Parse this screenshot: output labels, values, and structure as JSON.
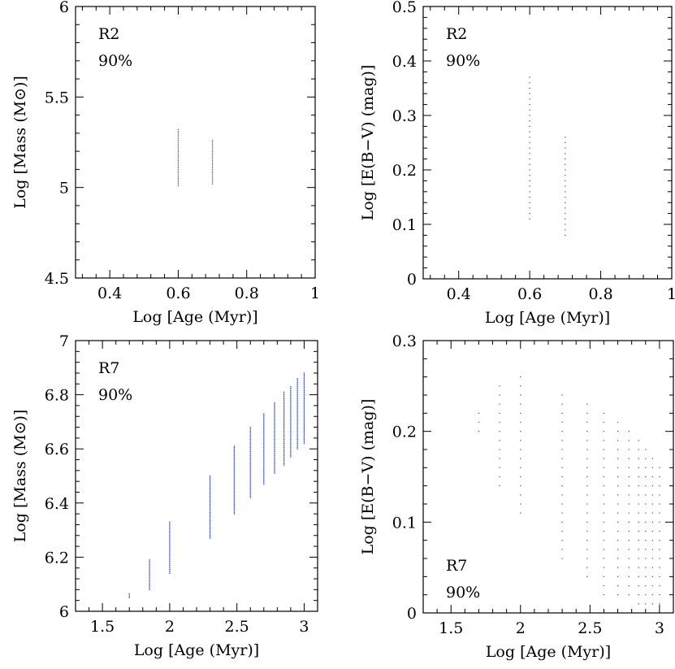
{
  "chart_data": [
    {
      "id": "r2-mass",
      "type": "scatter",
      "title": "",
      "xlabel": "Log [Age (Myr)]",
      "ylabel": "Log [Mass (M⊙)]",
      "xlim": [
        0.3,
        1.0
      ],
      "ylim": [
        4.5,
        6.0
      ],
      "xticks": [
        0.4,
        0.6,
        0.8,
        1
      ],
      "xtick_labels": [
        "0.4",
        "0.6",
        "0.8",
        "1"
      ],
      "yticks": [
        4.5,
        5,
        5.5,
        6
      ],
      "ytick_labels": [
        "4.5",
        "5",
        "5.5",
        "6"
      ],
      "annotation": [
        "R2",
        "90%"
      ],
      "annotation_position": "top-left",
      "point_color": "#1f3bd6",
      "columns": [
        {
          "x": 0.6,
          "ymin": 5.01,
          "ymax": 5.32,
          "step": 0.01
        },
        {
          "x": 0.7,
          "ymin": 5.02,
          "ymax": 5.26,
          "step": 0.01
        }
      ]
    },
    {
      "id": "r2-ebv",
      "type": "scatter",
      "title": "",
      "xlabel": "Log [Age (Myr)]",
      "ylabel": "Log [E(B−V) (mag)]",
      "xlim": [
        0.3,
        1.0
      ],
      "ylim": [
        0,
        0.5
      ],
      "xticks": [
        0.4,
        0.6,
        0.8,
        1
      ],
      "xtick_labels": [
        "0.4",
        "0.6",
        "0.8",
        "1"
      ],
      "yticks": [
        0,
        0.1,
        0.2,
        0.3,
        0.4,
        0.5
      ],
      "ytick_labels": [
        "0",
        "0.1",
        "0.2",
        "0.3",
        "0.4",
        "0.5"
      ],
      "annotation": [
        "R2",
        "90%"
      ],
      "annotation_position": "top-left",
      "point_color": "#1f3bd6",
      "columns": [
        {
          "x": 0.6,
          "ymin": 0.11,
          "ymax": 0.37,
          "step": 0.01
        },
        {
          "x": 0.7,
          "ymin": 0.08,
          "ymax": 0.26,
          "step": 0.01
        }
      ]
    },
    {
      "id": "r7-mass",
      "type": "scatter",
      "title": "",
      "xlabel": "Log [Age (Myr)]",
      "ylabel": "Log [Mass (M⊙)]",
      "xlim": [
        1.3,
        3.1
      ],
      "ylim": [
        6.0,
        7.0
      ],
      "xticks": [
        1.5,
        2,
        2.5,
        3
      ],
      "xtick_labels": [
        "1.5",
        "2",
        "2.5",
        "3"
      ],
      "yticks": [
        6,
        6.2,
        6.4,
        6.6,
        6.8,
        7
      ],
      "ytick_labels": [
        "6",
        "6.2",
        "6.4",
        "6.6",
        "6.8",
        "7"
      ],
      "annotation": [
        "R7",
        "90%"
      ],
      "annotation_position": "top-left",
      "point_color": "#1f3bd6",
      "columns": [
        {
          "x": 1.7,
          "ymin": 6.05,
          "ymax": 6.065,
          "step": 0.005
        },
        {
          "x": 1.85,
          "ymin": 6.08,
          "ymax": 6.19,
          "step": 0.005
        },
        {
          "x": 2.0,
          "ymin": 6.14,
          "ymax": 6.33,
          "step": 0.005
        },
        {
          "x": 2.3,
          "ymin": 6.27,
          "ymax": 6.5,
          "step": 0.005
        },
        {
          "x": 2.48,
          "ymin": 6.36,
          "ymax": 6.61,
          "step": 0.005
        },
        {
          "x": 2.6,
          "ymin": 6.42,
          "ymax": 6.68,
          "step": 0.005
        },
        {
          "x": 2.7,
          "ymin": 6.47,
          "ymax": 6.73,
          "step": 0.005
        },
        {
          "x": 2.78,
          "ymin": 6.51,
          "ymax": 6.77,
          "step": 0.005
        },
        {
          "x": 2.85,
          "ymin": 6.54,
          "ymax": 6.81,
          "step": 0.005
        },
        {
          "x": 2.9,
          "ymin": 6.57,
          "ymax": 6.83,
          "step": 0.005
        },
        {
          "x": 2.95,
          "ymin": 6.6,
          "ymax": 6.86,
          "step": 0.005
        },
        {
          "x": 3.0,
          "ymin": 6.62,
          "ymax": 6.88,
          "step": 0.005
        }
      ]
    },
    {
      "id": "r7-ebv",
      "type": "scatter",
      "title": "",
      "xlabel": "Log [Age (Myr)]",
      "ylabel": "Log [E(B−V) (mag)]",
      "xlim": [
        1.3,
        3.1
      ],
      "ylim": [
        0,
        0.3
      ],
      "xticks": [
        1.5,
        2,
        2.5,
        3
      ],
      "xtick_labels": [
        "1.5",
        "2",
        "2.5",
        "3"
      ],
      "yticks": [
        0,
        0.1,
        0.2,
        0.3
      ],
      "ytick_labels": [
        "0",
        "0.1",
        "0.2",
        "0.3"
      ],
      "annotation": [
        "R7",
        "90%"
      ],
      "annotation_position": "bottom-left",
      "point_color": "#1f3bd6",
      "columns": [
        {
          "x": 1.7,
          "ymin": 0.2,
          "ymax": 0.22,
          "step": 0.01
        },
        {
          "x": 1.85,
          "ymin": 0.14,
          "ymax": 0.25,
          "step": 0.01
        },
        {
          "x": 2.0,
          "ymin": 0.11,
          "ymax": 0.26,
          "step": 0.01
        },
        {
          "x": 2.3,
          "ymin": 0.06,
          "ymax": 0.24,
          "step": 0.01
        },
        {
          "x": 2.48,
          "ymin": 0.04,
          "ymax": 0.23,
          "step": 0.01
        },
        {
          "x": 2.6,
          "ymin": 0.02,
          "ymax": 0.22,
          "step": 0.01
        },
        {
          "x": 2.7,
          "ymin": 0.02,
          "ymax": 0.21,
          "step": 0.01
        },
        {
          "x": 2.78,
          "ymin": 0.02,
          "ymax": 0.2,
          "step": 0.01
        },
        {
          "x": 2.85,
          "ymin": 0.01,
          "ymax": 0.19,
          "step": 0.01
        },
        {
          "x": 2.9,
          "ymin": 0.01,
          "ymax": 0.18,
          "step": 0.01
        },
        {
          "x": 2.95,
          "ymin": 0.01,
          "ymax": 0.17,
          "step": 0.01
        },
        {
          "x": 3.0,
          "ymin": 0.01,
          "ymax": 0.16,
          "step": 0.01
        }
      ]
    }
  ]
}
